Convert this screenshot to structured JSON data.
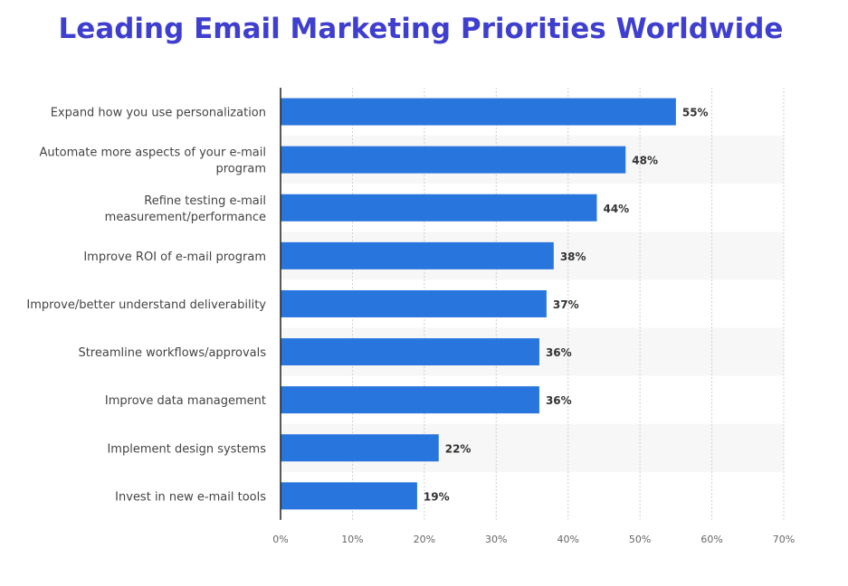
{
  "chart_data": {
    "type": "bar",
    "orientation": "horizontal",
    "title": "Leading Email Marketing Priorities Worldwide",
    "categories": [
      [
        "Expand how you use personalization"
      ],
      [
        "Automate more aspects of your e-mail",
        "program"
      ],
      [
        "Refine testing e-mail",
        "measurement/performance"
      ],
      [
        "Improve ROI of e-mail program"
      ],
      [
        "Improve/better understand deliverability"
      ],
      [
        "Streamline workflows/approvals"
      ],
      [
        "Improve data management"
      ],
      [
        "Implement design systems"
      ],
      [
        "Invest in new e-mail tools"
      ]
    ],
    "values": [
      55,
      48,
      44,
      38,
      37,
      36,
      36,
      22,
      19
    ],
    "value_labels": [
      "55%",
      "48%",
      "44%",
      "38%",
      "37%",
      "36%",
      "36%",
      "22%",
      "19%"
    ],
    "xlim": [
      0,
      70
    ],
    "x_ticks": [
      "0%",
      "10%",
      "20%",
      "30%",
      "40%",
      "50%",
      "60%",
      "70%"
    ],
    "bar_color": "#2876dd",
    "stripe_color": "#f7f7f7",
    "grid": true
  }
}
